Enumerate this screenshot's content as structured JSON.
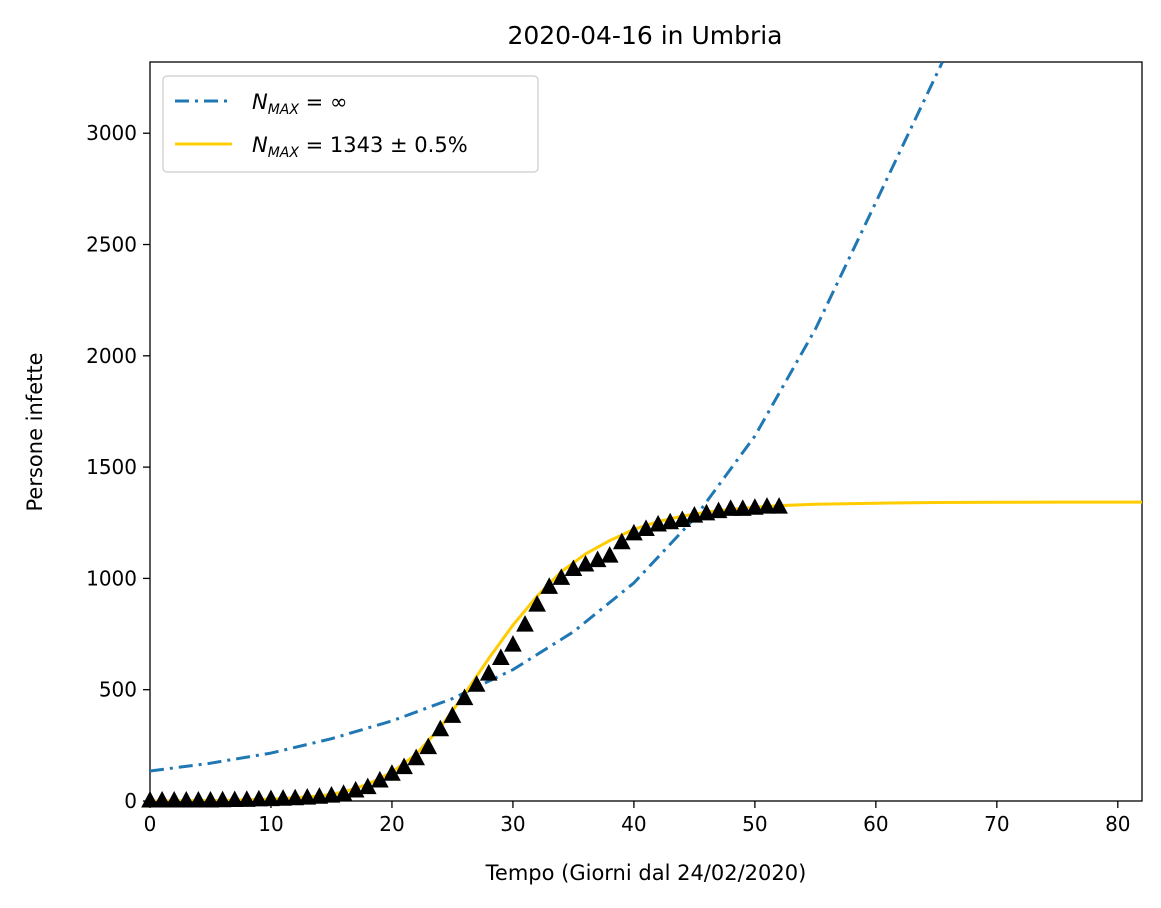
{
  "chart_data": {
    "type": "line",
    "title": "2020-04-16 in Umbria",
    "xlabel": "Tempo (Giorni dal 24/02/2020)",
    "ylabel": "Persone infette",
    "xlim": [
      0,
      82
    ],
    "ylim": [
      0,
      3320
    ],
    "xticks": [
      0,
      10,
      20,
      30,
      40,
      50,
      60,
      70,
      80
    ],
    "yticks": [
      0,
      500,
      1000,
      1500,
      2000,
      2500,
      3000
    ],
    "grid": false,
    "legend_position": "top-left",
    "legend": [
      {
        "sym": "N",
        "sub": "MAX",
        "eq": " = ",
        "val": "∞",
        "series": "exponential"
      },
      {
        "sym": "N",
        "sub": "MAX",
        "eq": " = ",
        "val": "1343 ± 0.5%",
        "series": "logistic"
      }
    ],
    "series": [
      {
        "key": "exponential",
        "style": "dashdot",
        "color": "#1f77b4",
        "x": [
          0,
          5,
          10,
          15,
          20,
          25,
          30,
          35,
          40,
          45,
          50,
          55,
          60,
          65.5
        ],
        "y": [
          135,
          170,
          215,
          280,
          360,
          460,
          590,
          760,
          980,
          1270,
          1640,
          2120,
          2690,
          3320
        ]
      },
      {
        "key": "logistic",
        "style": "solid",
        "color": "#ffcc00",
        "x": [
          0,
          5,
          10,
          14,
          16,
          18,
          20,
          22,
          24,
          26,
          28,
          30,
          32,
          34,
          36,
          38,
          40,
          42,
          44,
          46,
          48,
          50,
          52,
          55,
          60,
          65,
          70,
          75,
          82
        ],
        "y": [
          0,
          2,
          8,
          22,
          40,
          75,
          130,
          210,
          330,
          480,
          640,
          790,
          920,
          1030,
          1110,
          1170,
          1220,
          1255,
          1280,
          1298,
          1310,
          1320,
          1327,
          1333,
          1338,
          1341,
          1342,
          1343,
          1343
        ]
      },
      {
        "key": "observed",
        "style": "marker-triangle",
        "color": "#000000",
        "x": [
          0,
          1,
          2,
          3,
          4,
          5,
          6,
          7,
          8,
          9,
          10,
          11,
          12,
          13,
          14,
          15,
          16,
          17,
          18,
          19,
          20,
          21,
          22,
          23,
          24,
          25,
          26,
          27,
          28,
          29,
          30,
          31,
          32,
          33,
          34,
          35,
          36,
          37,
          38,
          39,
          40,
          41,
          42,
          43,
          44,
          45,
          46,
          47,
          48,
          49,
          50,
          51,
          52
        ],
        "y": [
          0,
          0,
          0,
          0,
          0,
          0,
          1,
          2,
          3,
          5,
          6,
          8,
          10,
          13,
          17,
          22,
          30,
          45,
          60,
          90,
          120,
          150,
          190,
          240,
          320,
          380,
          460,
          520,
          570,
          640,
          700,
          790,
          880,
          960,
          1000,
          1040,
          1060,
          1080,
          1100,
          1160,
          1200,
          1220,
          1240,
          1250,
          1260,
          1280,
          1290,
          1300,
          1310,
          1310,
          1315,
          1320,
          1320
        ]
      }
    ]
  }
}
